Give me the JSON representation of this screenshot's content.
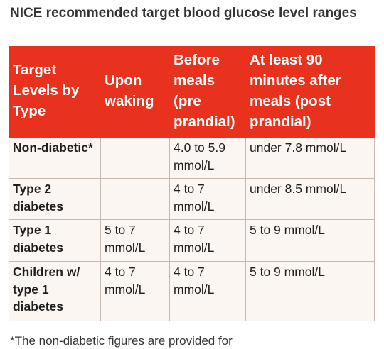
{
  "title": "NICE recommended target blood glucose level ranges",
  "table": {
    "headers": [
      "Target Levels by Type",
      "Upon waking",
      "Before meals (pre prandial)",
      "At least 90 minutes after meals (post prandial)"
    ],
    "rows": [
      {
        "type": "Non-diabetic*",
        "waking": "",
        "before": "4.0 to 5.9 mmol/L",
        "after": "under 7.8 mmol/L"
      },
      {
        "type": "Type 2 diabetes",
        "waking": "",
        "before": "4 to 7 mmol/L",
        "after": "under 8.5 mmol/L"
      },
      {
        "type": "Type 1 diabetes",
        "waking": "5 to 7 mmol/L",
        "before": "4 to 7 mmol/L",
        "after": "5 to 9 mmol/L"
      },
      {
        "type": "Children w/ type 1 diabetes",
        "waking": "4 to 7 mmol/L",
        "before": "4 to 7 mmol/L",
        "after": "5 to 9 mmol/L"
      }
    ]
  },
  "footnote": "*The non-diabetic figures are provided for",
  "colors": {
    "header_background": "#e8321d",
    "cell_background": "#fcf6f2"
  }
}
